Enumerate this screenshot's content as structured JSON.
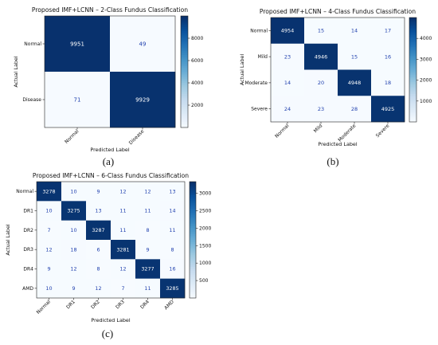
{
  "chart_data": [
    {
      "type": "heatmap",
      "caption": "(a)",
      "title": "Proposed IMF+LCNN – 2-Class Fundus Classification",
      "xlabel": "Predicted Label",
      "ylabel": "Actual Label",
      "categories": [
        "Normal",
        "Disease"
      ],
      "matrix": [
        [
          9951,
          49
        ],
        [
          71,
          9929
        ]
      ],
      "value_range": [
        0,
        10000
      ],
      "colorbar_ticks": [
        2000,
        4000,
        6000,
        8000
      ],
      "colormap": "Blues"
    },
    {
      "type": "heatmap",
      "caption": "(b)",
      "title": "Proposed IMF+LCNN – 4-Class Fundus Classification",
      "xlabel": "Predicted Label",
      "ylabel": "Actual Label",
      "categories": [
        "Normal",
        "Mild",
        "Moderate",
        "Severe"
      ],
      "matrix": [
        [
          4954,
          15,
          14,
          17
        ],
        [
          23,
          4946,
          15,
          16
        ],
        [
          14,
          20,
          4948,
          18
        ],
        [
          24,
          23,
          28,
          4925
        ]
      ],
      "value_range": [
        0,
        5000
      ],
      "colorbar_ticks": [
        1000,
        2000,
        3000,
        4000
      ],
      "colormap": "Blues"
    },
    {
      "type": "heatmap",
      "caption": "(c)",
      "title": "Proposed IMF+LCNN – 6-Class Fundus Classification",
      "xlabel": "Predicted Label",
      "ylabel": "Actual Label",
      "categories": [
        "Normal",
        "DR1",
        "DR2",
        "DR3",
        "DR4",
        "AMD"
      ],
      "matrix": [
        [
          3278,
          10,
          9,
          12,
          12,
          13
        ],
        [
          10,
          3275,
          13,
          11,
          11,
          14
        ],
        [
          7,
          10,
          3287,
          11,
          8,
          11
        ],
        [
          12,
          18,
          6,
          3281,
          9,
          8
        ],
        [
          9,
          12,
          8,
          12,
          3277,
          16
        ],
        [
          10,
          9,
          12,
          7,
          11,
          3285
        ]
      ],
      "value_range": [
        0,
        3333
      ],
      "colorbar_ticks": [
        500,
        1000,
        1500,
        2000,
        2500,
        3000
      ],
      "colormap": "Blues"
    }
  ]
}
